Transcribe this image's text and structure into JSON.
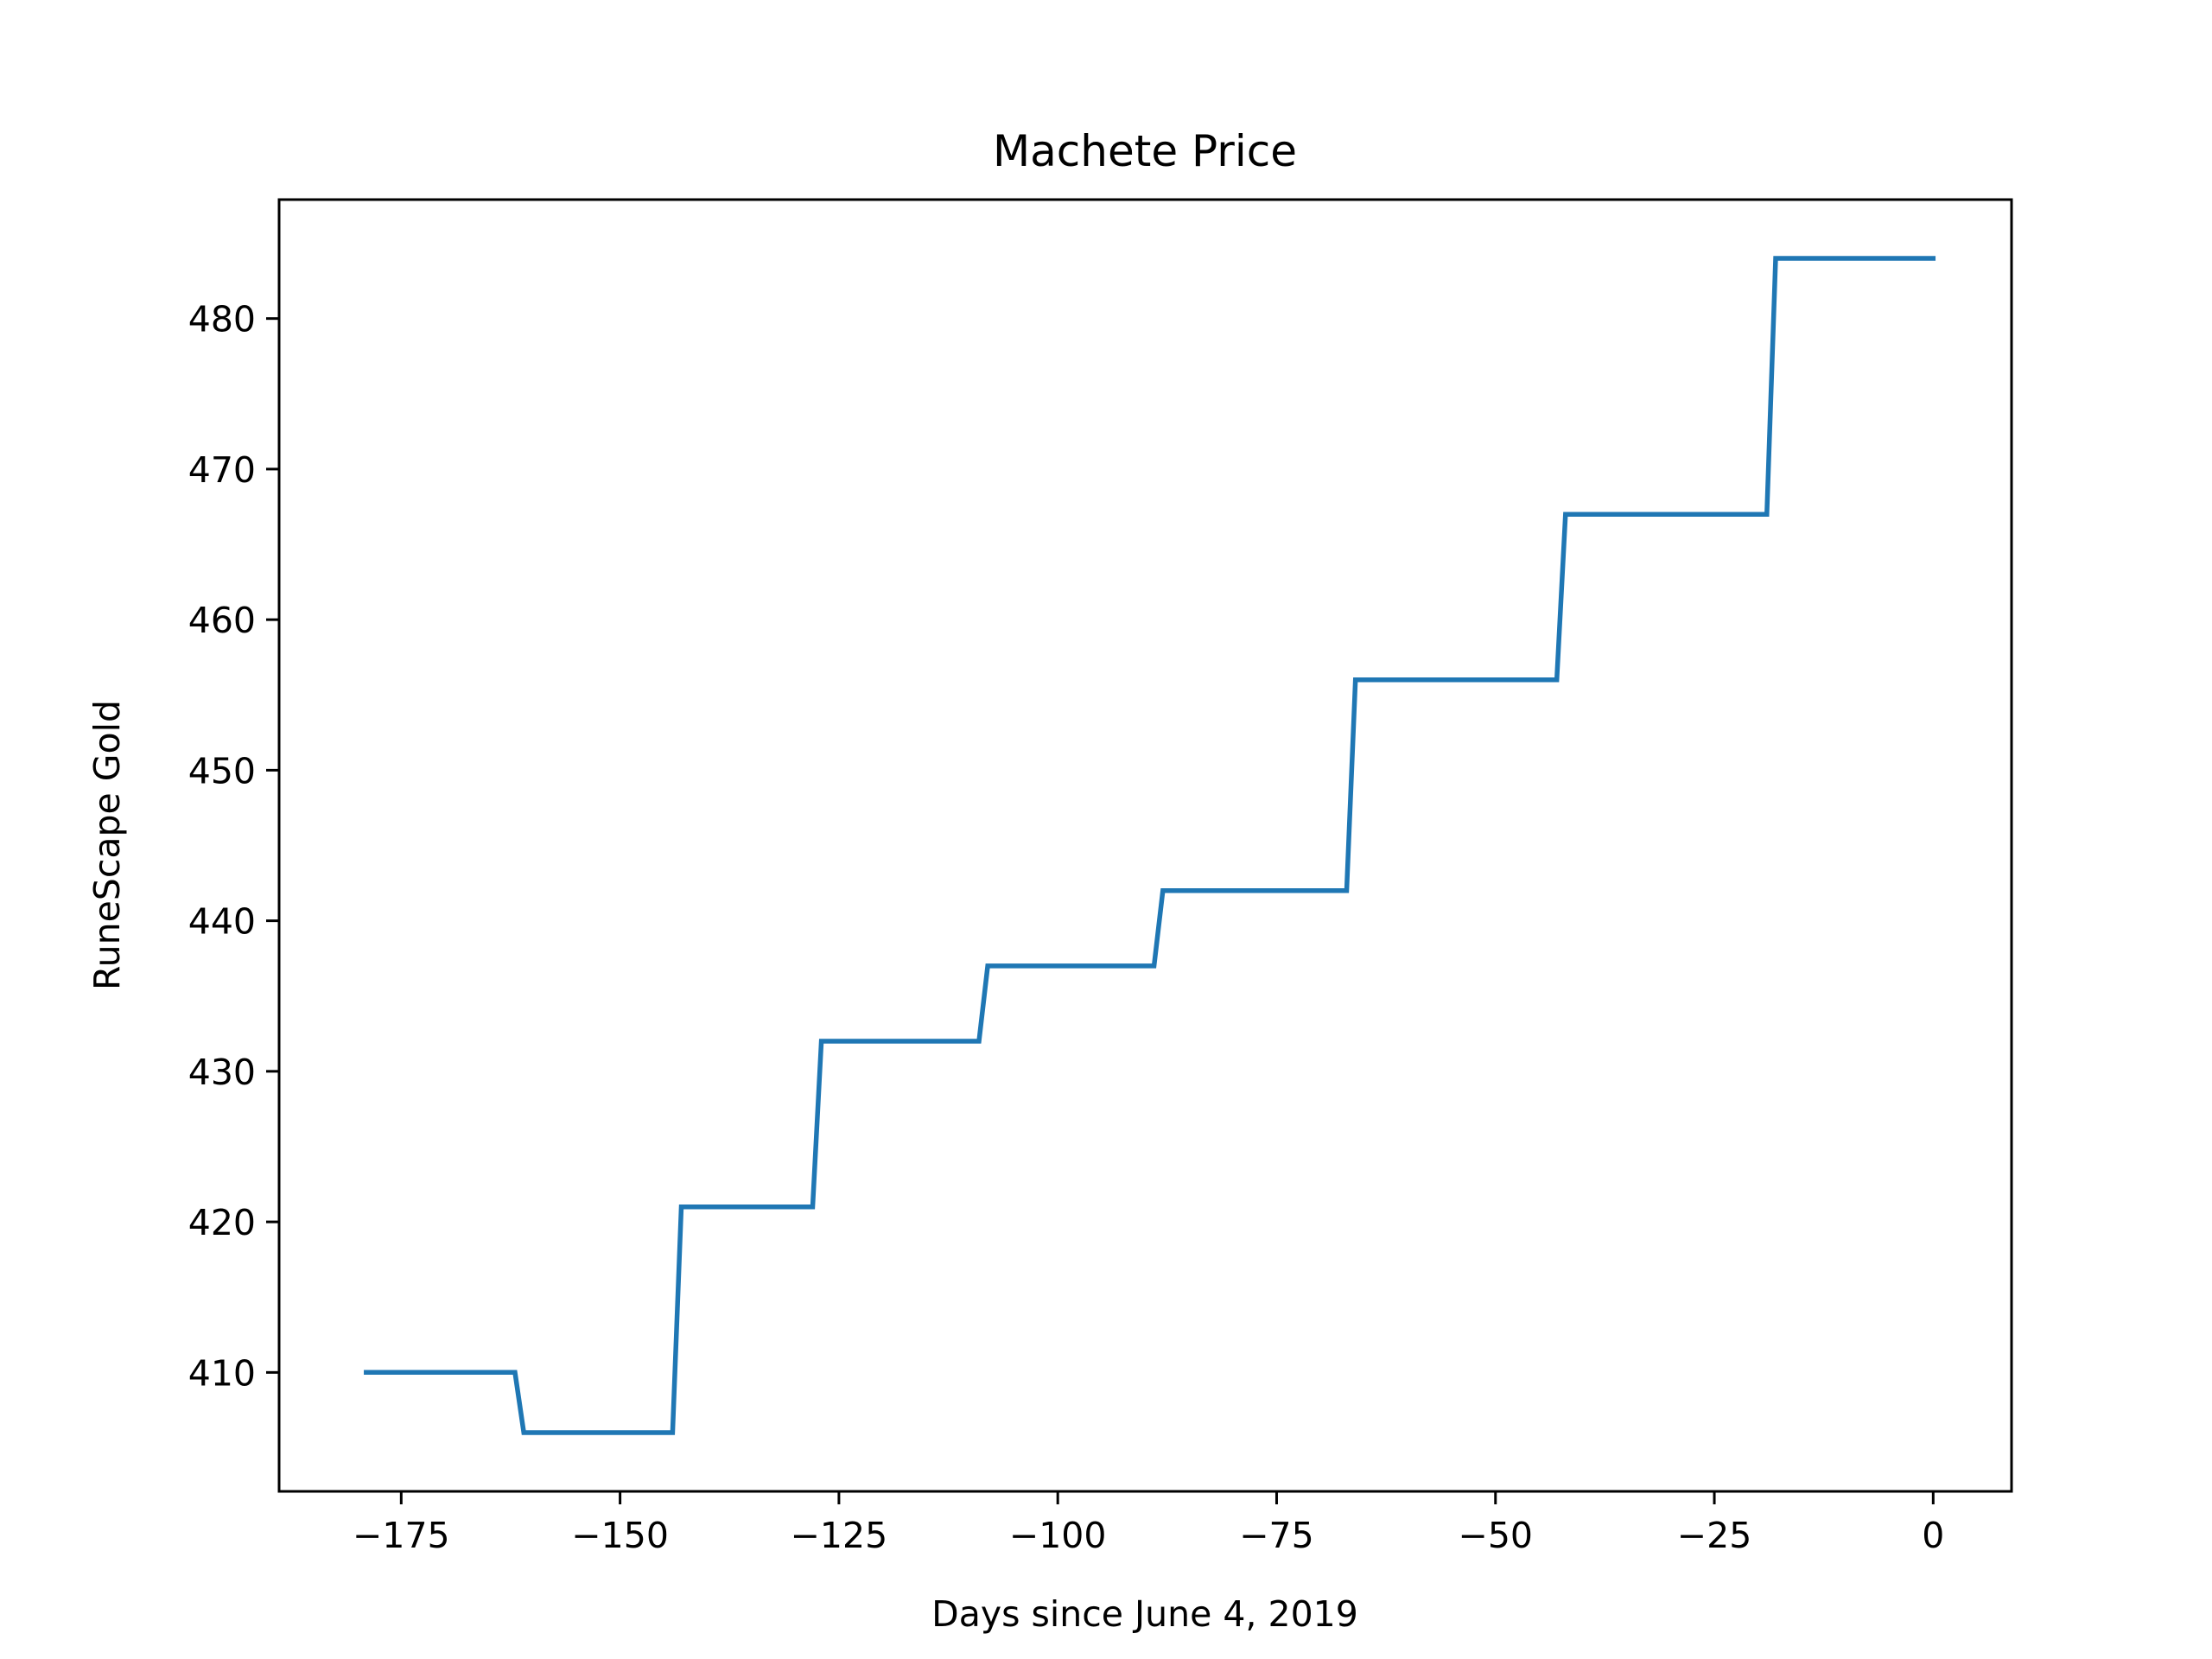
{
  "chart_data": {
    "type": "line",
    "title": "Machete Price",
    "xlabel": "Days since June 4, 2019",
    "ylabel": "RuneScape Gold",
    "xlim": [
      -188.95,
      8.95
    ],
    "ylim": [
      402.1,
      487.9
    ],
    "grid": false,
    "legend": "none",
    "x_ticks": [
      -175,
      -150,
      -125,
      -100,
      -75,
      -50,
      -25,
      0
    ],
    "x_tick_labels": [
      "−175",
      "−150",
      "−125",
      "−100",
      "−75",
      "−50",
      "−25",
      "0"
    ],
    "y_ticks": [
      410,
      420,
      430,
      440,
      450,
      460,
      470,
      480
    ],
    "y_tick_labels": [
      "410",
      "420",
      "430",
      "440",
      "450",
      "460",
      "470",
      "480"
    ],
    "series": [
      {
        "color": "#1f77b4",
        "points": [
          [
            -179,
            410
          ],
          [
            -162,
            410
          ],
          [
            -161,
            406
          ],
          [
            -144,
            406
          ],
          [
            -143,
            421
          ],
          [
            -128,
            421
          ],
          [
            -127,
            432
          ],
          [
            -109,
            432
          ],
          [
            -108,
            437
          ],
          [
            -89,
            437
          ],
          [
            -88,
            442
          ],
          [
            -67,
            442
          ],
          [
            -66,
            456
          ],
          [
            -43,
            456
          ],
          [
            -42,
            467
          ],
          [
            -19,
            467
          ],
          [
            -18,
            484
          ],
          [
            0,
            484
          ]
        ]
      }
    ]
  }
}
